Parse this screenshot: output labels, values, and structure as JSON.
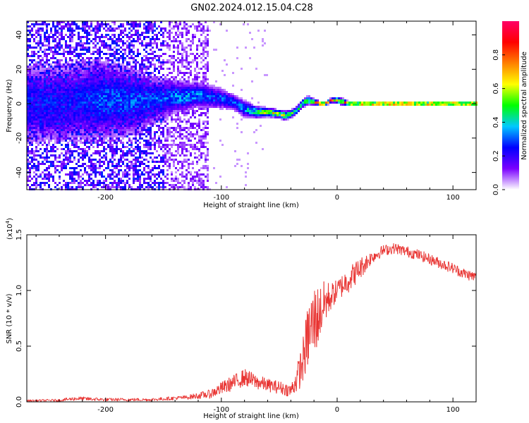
{
  "figure": {
    "title": "GN02.2024.012.15.04.C28"
  },
  "chart_data": [
    {
      "type": "heatmap",
      "title": "GN02.2024.012.15.04.C28",
      "xlabel": "Height of straight line (km)",
      "ylabel": "Frequency (Hz)",
      "xlim": [
        -268,
        120
      ],
      "ylim": [
        -50,
        48
      ],
      "x_ticks": [
        -200,
        -100,
        0,
        100
      ],
      "x_tick_labels": [
        "-200",
        "-100",
        "0",
        "100"
      ],
      "y_ticks": [
        -40,
        -20,
        0,
        20,
        40
      ],
      "y_tick_labels": [
        "-40",
        "-20",
        "0",
        "20",
        "40"
      ],
      "colorbar": {
        "label": "Normalized spectral amplitude",
        "range": [
          0,
          1
        ],
        "ticks": [
          0.0,
          0.2,
          0.4,
          0.6,
          0.8
        ],
        "tick_labels": [
          "0.0",
          "0.2",
          "0.4",
          "0.6",
          "0.8"
        ],
        "colormap": [
          "#ffffff",
          "#7a00ff",
          "#0000ff",
          "#00c8ff",
          "#00ff00",
          "#ffff00",
          "#ff8000",
          "#ff0000",
          "#ff0066"
        ]
      },
      "ridge": {
        "x": [
          -235,
          -225,
          -200,
          -175,
          -160,
          -150,
          -140,
          -130,
          -120,
          -110,
          -100,
          -90,
          -80,
          -70,
          -60,
          -50,
          -45,
          -40,
          -35,
          -30,
          -25,
          -20,
          -15,
          -10,
          -5,
          0,
          5,
          10,
          20,
          40,
          60,
          80,
          100,
          120
        ],
        "freq": [
          0,
          1,
          2,
          1,
          2,
          3,
          4,
          4,
          5,
          4,
          3,
          1,
          -3,
          -5,
          -5,
          -6,
          -7,
          -6,
          -4,
          0,
          2,
          1,
          0,
          0,
          2,
          2,
          1,
          0,
          0,
          0,
          0,
          0,
          0,
          0
        ],
        "amplitude": [
          0.25,
          0.25,
          0.3,
          0.3,
          0.3,
          0.3,
          0.35,
          0.35,
          0.35,
          0.3,
          0.3,
          0.3,
          0.35,
          0.45,
          0.65,
          0.6,
          0.65,
          0.55,
          0.45,
          0.5,
          0.55,
          0.6,
          0.9,
          0.95,
          0.9,
          0.6,
          0.7,
          0.95,
          0.95,
          0.95,
          0.95,
          0.95,
          0.95,
          0.95
        ],
        "spread_hz": [
          20,
          20,
          20,
          16,
          12,
          10,
          8,
          7,
          6,
          6,
          5,
          4,
          4,
          3,
          2,
          2,
          2,
          2,
          2,
          2,
          2,
          1.5,
          1,
          1,
          1,
          1.5,
          1.5,
          1,
          1,
          1,
          1,
          1,
          1,
          1
        ]
      }
    },
    {
      "type": "line",
      "xlabel": "Height of straight line (km)",
      "ylabel": "SNR (10 * v/v)",
      "y_multiplier": "(x10",
      "y_multiplier_exponent": "4",
      "y_multiplier_close": ")",
      "xlim": [
        -268,
        120
      ],
      "ylim": [
        0,
        1.5
      ],
      "x_ticks": [
        -200,
        -100,
        0,
        100
      ],
      "x_tick_labels": [
        "-200",
        "-100",
        "0",
        "100"
      ],
      "y_ticks": [
        0.0,
        0.5,
        1.0,
        1.5
      ],
      "y_tick_labels": [
        "0.0",
        "0.5",
        "1.0",
        "1.5"
      ],
      "color": "#e8312f",
      "envelope": {
        "x": [
          -268,
          -240,
          -225,
          -200,
          -160,
          -130,
          -110,
          -100,
          -90,
          -80,
          -70,
          -60,
          -50,
          -40,
          -35,
          -30,
          -25,
          -20,
          -15,
          -10,
          -5,
          0,
          10,
          20,
          30,
          40,
          50,
          60,
          70,
          80,
          90,
          100,
          110,
          120
        ],
        "mean": [
          0.01,
          0.015,
          0.03,
          0.02,
          0.02,
          0.04,
          0.07,
          0.12,
          0.17,
          0.22,
          0.18,
          0.15,
          0.13,
          0.1,
          0.2,
          0.35,
          0.6,
          0.72,
          0.8,
          0.9,
          0.95,
          1.0,
          1.1,
          1.2,
          1.3,
          1.36,
          1.38,
          1.35,
          1.32,
          1.28,
          1.24,
          1.2,
          1.15,
          1.12
        ],
        "noise": [
          0.01,
          0.012,
          0.02,
          0.015,
          0.015,
          0.02,
          0.04,
          0.06,
          0.07,
          0.08,
          0.07,
          0.06,
          0.06,
          0.06,
          0.12,
          0.2,
          0.3,
          0.35,
          0.25,
          0.2,
          0.12,
          0.1,
          0.12,
          0.1,
          0.06,
          0.05,
          0.05,
          0.05,
          0.05,
          0.05,
          0.05,
          0.05,
          0.05,
          0.05
        ]
      }
    }
  ]
}
